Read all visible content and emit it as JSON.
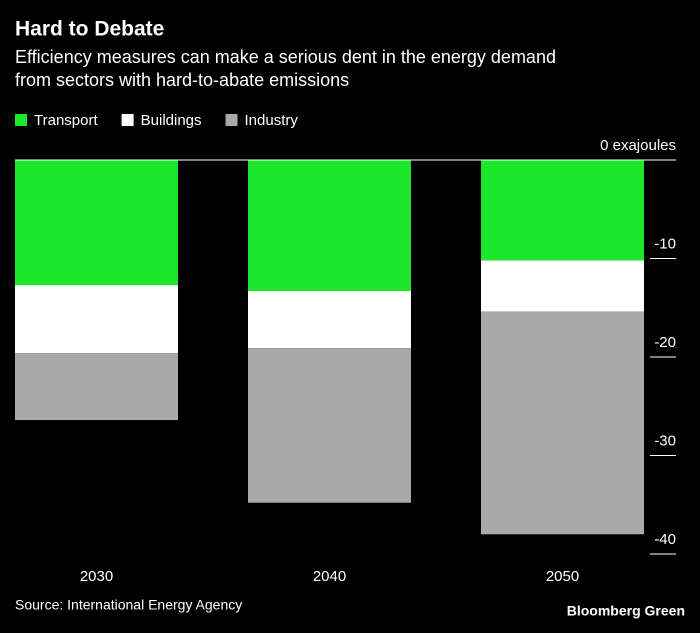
{
  "chart_data": {
    "type": "stacked-bar",
    "title": "Hard to Debate",
    "subtitle": "Efficiency measures can make a serious dent in the energy demand from sectors with hard-to-abate emissions",
    "categories": [
      "2030",
      "2040",
      "2050"
    ],
    "series": [
      {
        "name": "Transport",
        "color": "#1ee62a",
        "values": [
          -12.7,
          -13.3,
          -10.2
        ]
      },
      {
        "name": "Buildings",
        "color": "#ffffff",
        "values": [
          -6.9,
          -5.8,
          -5.2
        ]
      },
      {
        "name": "Industry",
        "color": "#a9a9a9",
        "values": [
          -6.8,
          -15.7,
          -22.6
        ]
      }
    ],
    "ylim": [
      -40,
      0
    ],
    "yticks": [
      {
        "value": 0,
        "label": "0 exajoules"
      },
      -10,
      -20,
      -30,
      -40
    ],
    "source": "Source: International Energy Agency",
    "brand": "Bloomberg Green"
  }
}
